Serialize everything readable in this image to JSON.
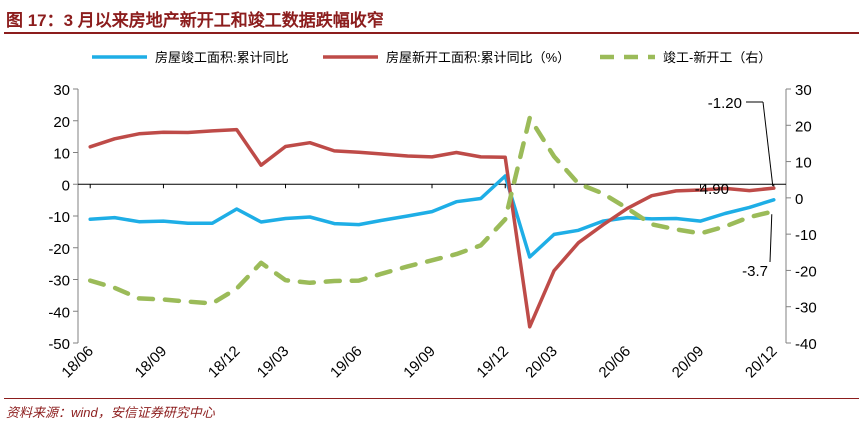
{
  "header": {
    "title": "图 17：3 月以来房地产新开工和竣工数据跌幅收窄"
  },
  "footer": {
    "source": "资料来源：wind，安信证券研究中心"
  },
  "colors": {
    "completion": "#1eaee6",
    "new_start": "#be4b48",
    "diff": "#9bbb59",
    "title": "#8c1d1d",
    "axis": "#808080"
  },
  "chart_data": {
    "type": "line",
    "x": [
      "18/06",
      "18/07",
      "18/08",
      "18/09",
      "18/10",
      "18/11",
      "18/12",
      "19/02",
      "19/03",
      "19/04",
      "19/05",
      "19/06",
      "19/07",
      "19/08",
      "19/09",
      "19/10",
      "19/11",
      "19/12",
      "20/02",
      "20/03",
      "20/04",
      "20/05",
      "20/06",
      "20/07",
      "20/08",
      "20/09",
      "20/10",
      "20/11",
      "20/12"
    ],
    "xticks": [
      "18/06",
      "18/09",
      "18/12",
      "19/03",
      "19/06",
      "19/09",
      "19/12",
      "20/03",
      "20/06",
      "20/09",
      "20/12"
    ],
    "series": [
      {
        "name": "房屋竣工面积:累计同比",
        "axis": "left",
        "style": "solid",
        "values": [
          -11,
          -10.5,
          -11.8,
          -11.6,
          -12.3,
          -12.3,
          -7.8,
          -11.9,
          -10.8,
          -10.3,
          -12.4,
          -12.7,
          -11.3,
          -10,
          -8.6,
          -5.5,
          -4.5,
          2.6,
          -22.9,
          -15.8,
          -14.5,
          -11.6,
          -10.5,
          -10.9,
          -10.8,
          -11.6,
          -9.2,
          -7.3,
          -4.9
        ]
      },
      {
        "name": "房屋新开工面积:累计同比（%）",
        "axis": "left",
        "style": "solid",
        "values": [
          11.8,
          14.3,
          15.9,
          16.4,
          16.3,
          16.8,
          17.2,
          6,
          11.9,
          13.1,
          10.5,
          10.1,
          9.5,
          8.9,
          8.6,
          10,
          8.6,
          8.5,
          -44.9,
          -27.2,
          -18.4,
          -12.8,
          -7.6,
          -3.6,
          -2.1,
          -1.8,
          -1.3,
          -2,
          -1.2
        ]
      },
      {
        "name": "竣工-新开工（右）",
        "axis": "right",
        "style": "dashed",
        "values": [
          -22.8,
          -24.8,
          -27.7,
          -28,
          -28.6,
          -29.1,
          -25,
          -17.9,
          -22.7,
          -23.4,
          -22.9,
          -22.8,
          -20.8,
          -18.9,
          -17.2,
          -15.5,
          -13.1,
          -5.9,
          22,
          11.4,
          3.9,
          1.2,
          -2.9,
          -7.3,
          -8.7,
          -9.8,
          -7.9,
          -5.3,
          -3.7
        ]
      }
    ],
    "ylim_left": [
      -50,
      30
    ],
    "yticks_left": [
      "30",
      "20",
      "10",
      "0",
      "-10",
      "-20",
      "-30",
      "-40",
      "-50"
    ],
    "ylim_right": [
      -40,
      30
    ],
    "yticks_right": [
      "30",
      "20",
      "10",
      "0",
      "-10",
      "-20",
      "-30",
      "-40"
    ],
    "annotations": [
      {
        "text": "-1.20",
        "series": 1,
        "index": 28
      },
      {
        "text": "-4.90",
        "series": 0,
        "index": 28
      },
      {
        "text": "-3.7",
        "series": 2,
        "index": 28
      }
    ],
    "legend": "top",
    "grid": false
  }
}
